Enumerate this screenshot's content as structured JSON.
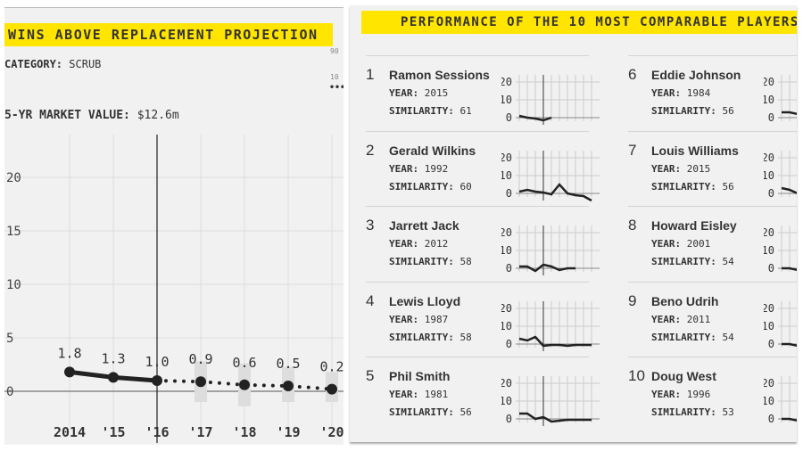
{
  "left": {
    "title": "WINS ABOVE REPLACEMENT PROJECTION",
    "category_label": "CATEGORY:",
    "category_value": "SCRUB",
    "market_label": "5-YR MARKET VALUE:",
    "market_value": "$12.6m",
    "legend_fragments": [
      "90",
      "10"
    ]
  },
  "chart_data": {
    "type": "line",
    "title": "WINS ABOVE REPLACEMENT PROJECTION",
    "x": [
      "2014",
      "'15",
      "'16",
      "'17",
      "'18",
      "'19",
      "'20"
    ],
    "values": [
      1.8,
      1.3,
      1.0,
      0.9,
      0.6,
      0.5,
      0.2
    ],
    "value_labels": [
      "1.8",
      "1.3",
      "1.0",
      "0.9",
      "0.6",
      "0.5",
      "0.2"
    ],
    "projected_from_index": 2,
    "uncertainty_ranges": [
      null,
      null,
      null,
      [
        -1.0,
        2.8
      ],
      [
        -1.4,
        2.6
      ],
      [
        -1.0,
        2.3
      ],
      [
        -1.0,
        1.8
      ]
    ],
    "yticks": [
      0,
      5,
      10,
      15,
      20
    ],
    "ylim": [
      -4,
      24
    ],
    "grid": true
  },
  "right": {
    "title": "PERFORMANCE OF THE 10 MOST COMPARABLE PLAYERS",
    "year_label": "YEAR:",
    "similarity_label": "SIMILARITY:",
    "spark_ticks": [
      "20",
      "10",
      "0"
    ],
    "players": [
      {
        "rank": "1",
        "name": "Ramon Sessions",
        "year": "2015",
        "similarity": "61",
        "war": [
          1,
          0,
          -0.5,
          -1.5,
          0
        ]
      },
      {
        "rank": "2",
        "name": "Gerald Wilkins",
        "year": "1992",
        "similarity": "60",
        "war": [
          1,
          2,
          1,
          0.5,
          -0.5,
          5,
          0,
          -1,
          -1.5,
          -4
        ]
      },
      {
        "rank": "3",
        "name": "Jarrett Jack",
        "year": "2012",
        "similarity": "58",
        "war": [
          1,
          1,
          -1.5,
          2,
          1,
          -1,
          0,
          0
        ]
      },
      {
        "rank": "4",
        "name": "Lewis Lloyd",
        "year": "1987",
        "similarity": "58",
        "war": [
          3,
          2,
          4,
          -1,
          -0.5,
          -0.5,
          -1,
          -0.5,
          -0.5,
          -0.5
        ]
      },
      {
        "rank": "5",
        "name": "Phil Smith",
        "year": "1981",
        "similarity": "56",
        "war": [
          3,
          3,
          0,
          1,
          -1.5,
          -1,
          -0.5,
          -0.5,
          -0.5,
          -0.5
        ]
      },
      {
        "rank": "6",
        "name": "Eddie Johnson",
        "year": "1984",
        "similarity": "56",
        "war": [
          3,
          3,
          2,
          2
        ]
      },
      {
        "rank": "7",
        "name": "Louis Williams",
        "year": "2015",
        "similarity": "56",
        "war": [
          3,
          2,
          0
        ]
      },
      {
        "rank": "8",
        "name": "Howard Eisley",
        "year": "2001",
        "similarity": "54",
        "war": [
          0,
          0,
          -1
        ]
      },
      {
        "rank": "9",
        "name": "Beno Udrih",
        "year": "2011",
        "similarity": "54",
        "war": [
          0,
          0,
          -1
        ]
      },
      {
        "rank": "10",
        "name": "Doug West",
        "year": "1996",
        "similarity": "53",
        "war": [
          0,
          0,
          -1
        ]
      }
    ]
  }
}
